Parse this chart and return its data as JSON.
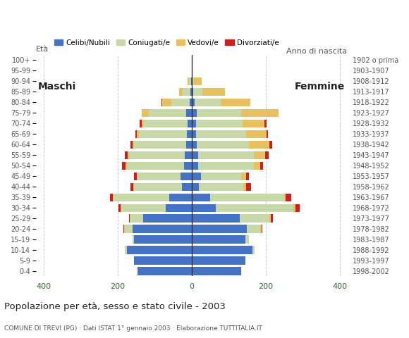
{
  "age_groups": [
    "0-4",
    "5-9",
    "10-14",
    "15-19",
    "20-24",
    "25-29",
    "30-34",
    "35-39",
    "40-44",
    "45-49",
    "50-54",
    "55-59",
    "60-64",
    "65-69",
    "70-74",
    "75-79",
    "80-84",
    "85-89",
    "90-94",
    "95-99",
    "100+"
  ],
  "birth_years": [
    "1998-2002",
    "1993-1997",
    "1988-1992",
    "1983-1987",
    "1978-1982",
    "1973-1977",
    "1968-1972",
    "1963-1967",
    "1958-1962",
    "1953-1957",
    "1948-1952",
    "1943-1947",
    "1938-1942",
    "1933-1937",
    "1928-1932",
    "1923-1927",
    "1918-1922",
    "1913-1917",
    "1908-1912",
    "1903-1907",
    "1902 o prima"
  ],
  "males": {
    "celibe": [
      145,
      155,
      175,
      155,
      160,
      130,
      70,
      60,
      25,
      30,
      20,
      18,
      15,
      12,
      10,
      15,
      5,
      3,
      2,
      0,
      0
    ],
    "coniugato": [
      0,
      0,
      5,
      5,
      20,
      35,
      120,
      150,
      130,
      115,
      155,
      150,
      140,
      130,
      120,
      100,
      50,
      20,
      5,
      0,
      0
    ],
    "vedovo": [
      0,
      0,
      0,
      0,
      2,
      2,
      2,
      2,
      2,
      2,
      3,
      5,
      5,
      5,
      5,
      20,
      25,
      10,
      3,
      0,
      0
    ],
    "divorziato": [
      0,
      0,
      0,
      0,
      2,
      2,
      5,
      8,
      8,
      8,
      10,
      8,
      5,
      5,
      5,
      0,
      2,
      0,
      0,
      0,
      0
    ]
  },
  "females": {
    "nubile": [
      135,
      145,
      165,
      145,
      150,
      130,
      65,
      50,
      20,
      25,
      18,
      18,
      15,
      12,
      12,
      15,
      8,
      5,
      2,
      0,
      0
    ],
    "coniugata": [
      0,
      0,
      5,
      10,
      35,
      80,
      210,
      200,
      120,
      110,
      150,
      150,
      140,
      135,
      125,
      120,
      70,
      25,
      5,
      0,
      0
    ],
    "vedova": [
      0,
      0,
      0,
      0,
      5,
      5,
      5,
      5,
      8,
      12,
      18,
      30,
      55,
      55,
      60,
      100,
      80,
      60,
      20,
      2,
      0
    ],
    "divorziata": [
      0,
      0,
      0,
      0,
      2,
      5,
      12,
      15,
      12,
      8,
      8,
      10,
      8,
      5,
      5,
      0,
      0,
      0,
      0,
      0,
      0
    ]
  },
  "colors": {
    "celibe": "#4472c4",
    "coniugato": "#c8d8a8",
    "vedovo": "#e8c060",
    "divorziato": "#cc2020"
  },
  "xlim": 420,
  "xticks": [
    -400,
    -200,
    0,
    200,
    400
  ],
  "title": "Popolazione per età, sesso e stato civile - 2003",
  "subtitle": "COMUNE DI TREVI (PG) · Dati ISTAT 1° gennaio 2003 · Elaborazione TUTTITALIA.IT",
  "label_eta": "Età",
  "label_anno": "Anno di nascita",
  "label_maschi": "Maschi",
  "label_femmine": "Femmine",
  "legend_labels": [
    "Celibi/Nubili",
    "Coniugati/e",
    "Vedovi/e",
    "Divorziati/e"
  ],
  "bg_color": "#ffffff",
  "grid_color": "#cccccc",
  "xtick_color": "#336633",
  "ytick_color": "#555555",
  "center_line_color": "#333333",
  "title_color": "#222222",
  "subtitle_color": "#555555"
}
